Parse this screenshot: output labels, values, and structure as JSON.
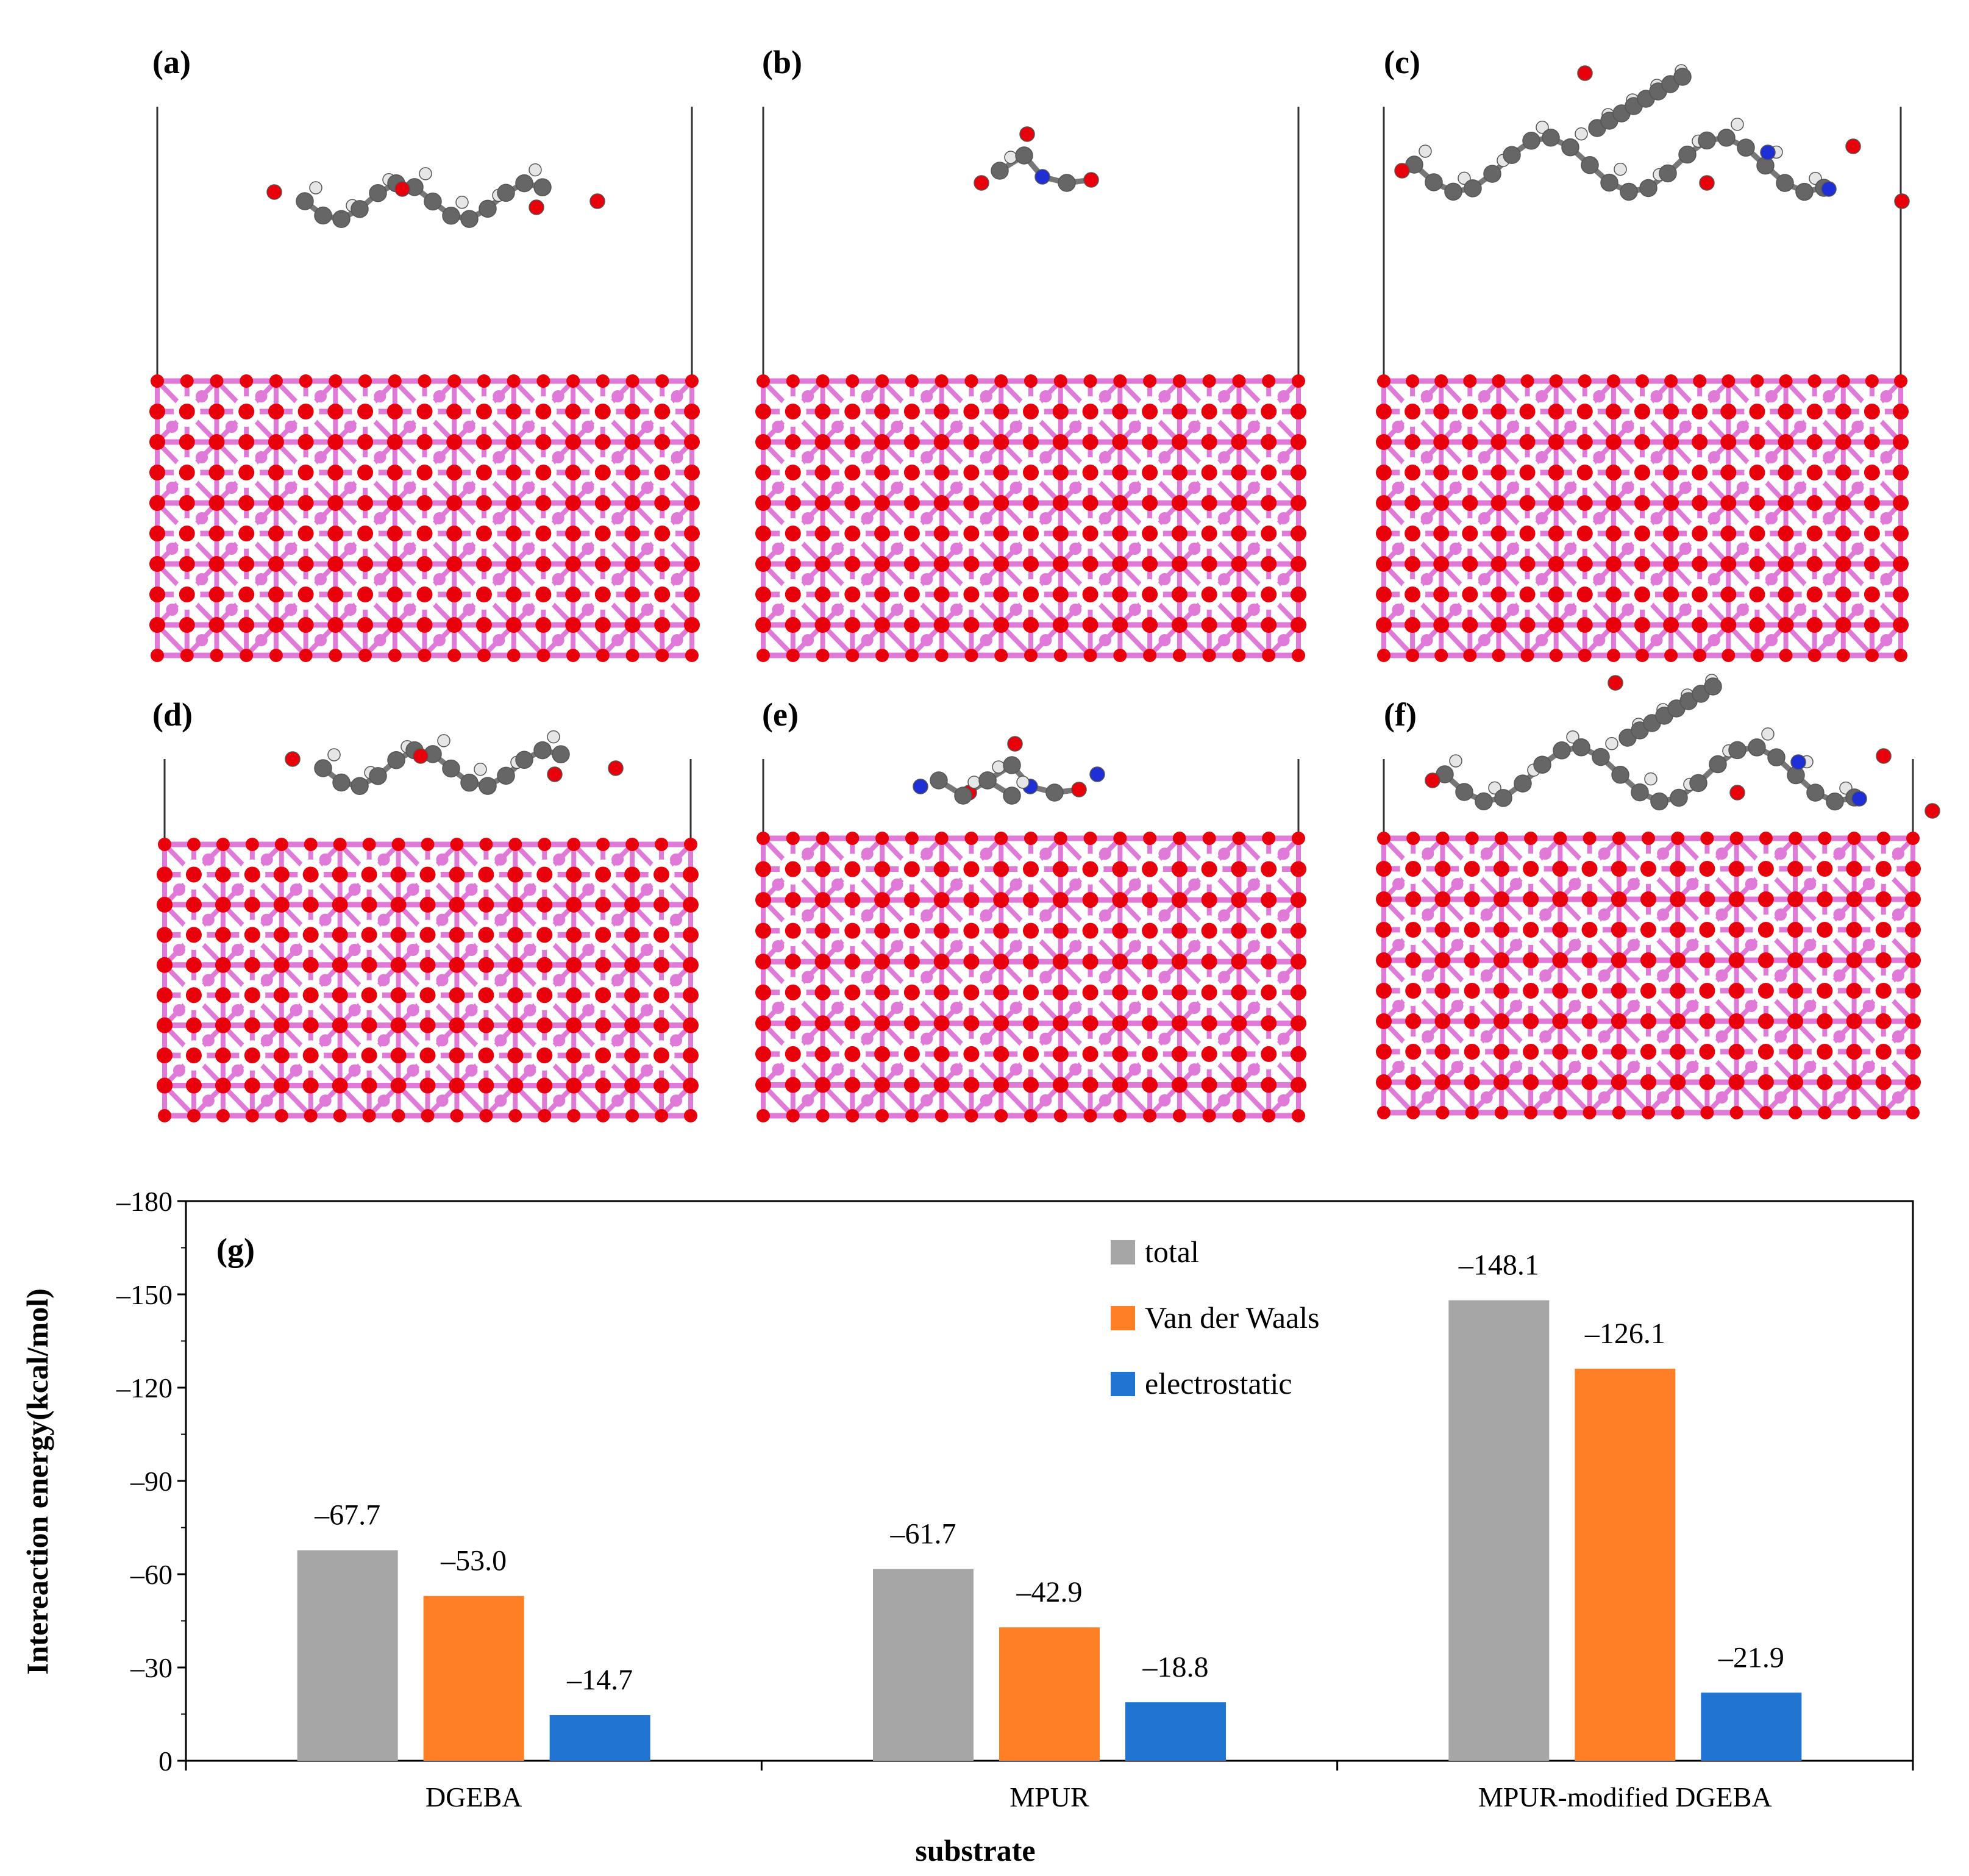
{
  "panels": [
    {
      "label": "(a)",
      "molecule": "dgeba"
    },
    {
      "label": "(b)",
      "molecule": "mpur"
    },
    {
      "label": "(c)",
      "molecule": "mixed"
    },
    {
      "label": "(d)",
      "molecule": "dgeba"
    },
    {
      "label": "(e)",
      "molecule": "mpur"
    },
    {
      "label": "(f)",
      "molecule": "mixed"
    }
  ],
  "atom_colors": {
    "oxygen": "#e8000b",
    "silicon": "#e07ad8",
    "carbon": "#666666",
    "hydrogen": "#e6e6e6",
    "nitrogen": "#1f2fd6"
  },
  "chart_data": {
    "type": "bar",
    "panel_label": "(g)",
    "categories": [
      "DGEBA",
      "MPUR",
      "MPUR-modified DGEBA"
    ],
    "series": [
      {
        "name": "total",
        "color": "#a6a6a6",
        "values": [
          -67.7,
          -61.7,
          -148.1
        ],
        "labels": [
          "–67.7",
          "–61.7",
          "–148.1"
        ]
      },
      {
        "name": "Van der Waals",
        "color": "#ff7f27",
        "values": [
          -53.0,
          -42.9,
          -126.1
        ],
        "labels": [
          "–53.0",
          "–42.9",
          "–126.1"
        ]
      },
      {
        "name": "electrostatic",
        "color": "#1f75d1",
        "values": [
          -14.7,
          -18.8,
          -21.9
        ],
        "labels": [
          "–14.7",
          "–18.8",
          "–21.9"
        ]
      }
    ],
    "ylabel": "Intereaction energy(kcal/mol)",
    "xlabel": "substrate",
    "yticks": [
      0,
      -30,
      -60,
      -90,
      -120,
      -150,
      -180
    ],
    "ytick_labels": [
      "0",
      "–30",
      "–60",
      "–90",
      "–120",
      "–150",
      "–180"
    ],
    "ylim": [
      0,
      -180
    ],
    "legend_position": "upper-center",
    "grid": false
  }
}
